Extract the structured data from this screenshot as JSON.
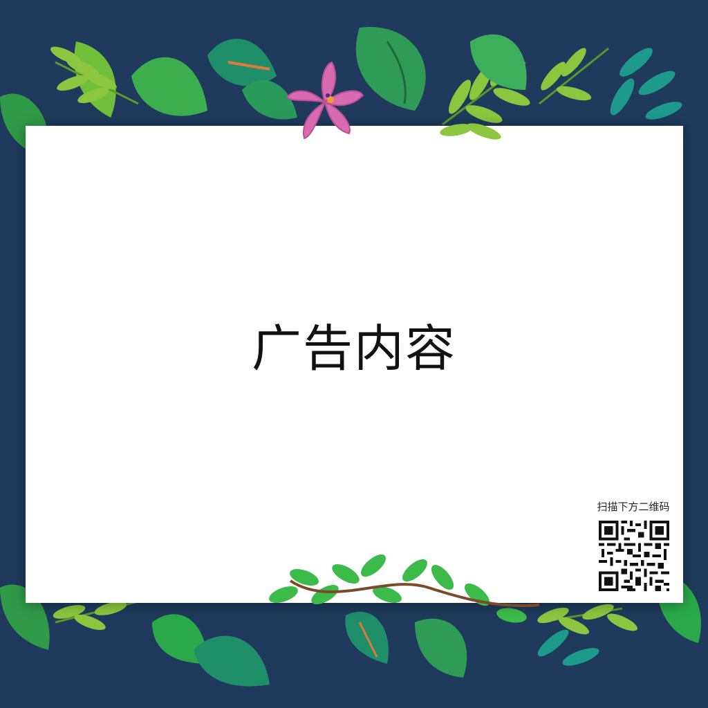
{
  "poster": {
    "headline": "广告内容",
    "qr_caption": "扫描下方二维码"
  },
  "colors": {
    "background": "#1f3a5c",
    "card": "#ffffff",
    "leaf_green": "#2aa84a",
    "leaf_lime": "#8cc63f",
    "leaf_teal": "#1e8a7a",
    "flower_pink": "#d86bb0"
  },
  "decor": {
    "top_foliage_icon": "leaf-cluster-icon",
    "flower_icon": "flower-icon",
    "bottom_foliage_icon": "leafy-branch-icon",
    "qr_icon": "qr-code-icon"
  }
}
